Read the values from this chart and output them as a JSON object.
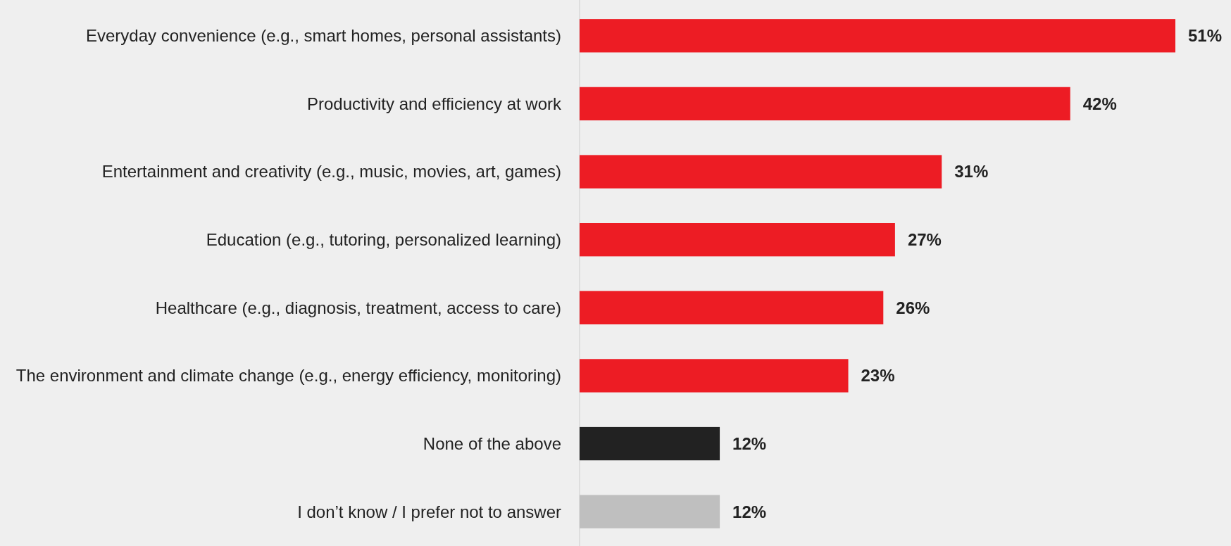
{
  "chart_data": {
    "type": "bar",
    "orientation": "horizontal",
    "categories": [
      "Everyday convenience (e.g., smart homes, personal assistants)",
      "Productivity and efficiency at work",
      "Entertainment and creativity (e.g., music, movies, art, games)",
      "Education (e.g., tutoring, personalized learning)",
      "Healthcare (e.g., diagnosis, treatment, access to care)",
      "The environment and climate change (e.g., energy efficiency, monitoring)",
      "None of the above",
      "I don’t know / I prefer not to answer"
    ],
    "values": [
      51,
      42,
      31,
      27,
      26,
      23,
      12,
      12
    ],
    "colors": [
      "#ed1c24",
      "#ed1c24",
      "#ed1c24",
      "#ed1c24",
      "#ed1c24",
      "#ed1c24",
      "#222222",
      "#bfbfbf"
    ],
    "value_labels": [
      "51%",
      "42%",
      "31%",
      "27%",
      "26%",
      "23%",
      "12%",
      "12%"
    ]
  }
}
